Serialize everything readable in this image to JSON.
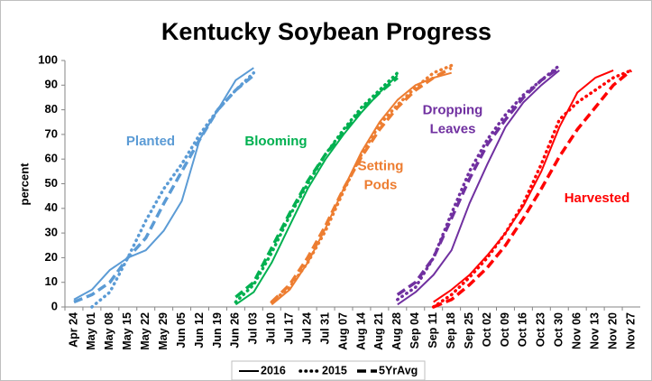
{
  "chart_data": {
    "type": "line",
    "title": "Kentucky Soybean Progress",
    "y_label": "percent",
    "categories": [
      "Apr 24",
      "May 01",
      "May 08",
      "May 15",
      "May 22",
      "May 29",
      "Jun 05",
      "Jun 12",
      "Jun 19",
      "Jun 26",
      "Jul 03",
      "Jul 10",
      "Jul 17",
      "Jul 24",
      "Jul 31",
      "Aug 07",
      "Aug 14",
      "Aug 21",
      "Aug 28",
      "Sep 04",
      "Sep 11",
      "Sep 18",
      "Sep 25",
      "Oct 02",
      "Oct 09",
      "Oct 16",
      "Oct 23",
      "Oct 30",
      "Nov 06",
      "Nov 13",
      "Nov 20",
      "Nov 27"
    ],
    "ylim": [
      0,
      100
    ],
    "yticks": [
      0,
      10,
      20,
      30,
      40,
      50,
      60,
      70,
      80,
      90,
      100
    ],
    "grid": false,
    "legend": {
      "position": "bottom",
      "color": "#000000",
      "entries": [
        {
          "name": "2016",
          "style": "solid"
        },
        {
          "name": "2015",
          "style": "dotted"
        },
        {
          "name": "5YrAvg",
          "style": "dashed"
        }
      ]
    },
    "stages": [
      {
        "label": [
          "Planted"
        ],
        "color": "#5b9bd5",
        "lines": [
          [
            3,
            7,
            15,
            20,
            23,
            31,
            43,
            68,
            80,
            92,
            97,
            null,
            null,
            null,
            null,
            null,
            null,
            null,
            null,
            null,
            null,
            null,
            null,
            null,
            null,
            null,
            null,
            null,
            null,
            null,
            null,
            null
          ],
          [
            null,
            0,
            6,
            20,
            35,
            48,
            58,
            70,
            80,
            88,
            95,
            null,
            null,
            null,
            null,
            null,
            null,
            null,
            null,
            null,
            null,
            null,
            null,
            null,
            null,
            null,
            null,
            null,
            null,
            null,
            null,
            null
          ],
          [
            2,
            5,
            10,
            20,
            28,
            42,
            55,
            68,
            80,
            88,
            94,
            null,
            null,
            null,
            null,
            null,
            null,
            null,
            null,
            null,
            null,
            null,
            null,
            null,
            null,
            null,
            null,
            null,
            null,
            null,
            null,
            null
          ]
        ]
      },
      {
        "label": [
          "Blooming"
        ],
        "color": "#00b050",
        "lines": [
          [
            null,
            null,
            null,
            null,
            null,
            null,
            null,
            null,
            null,
            1,
            6,
            18,
            33,
            48,
            60,
            70,
            79,
            87,
            94,
            null,
            null,
            null,
            null,
            null,
            null,
            null,
            null,
            null,
            null,
            null,
            null,
            null
          ],
          [
            null,
            null,
            null,
            null,
            null,
            null,
            null,
            null,
            null,
            2,
            9,
            22,
            37,
            50,
            62,
            72,
            81,
            88,
            95,
            null,
            null,
            null,
            null,
            null,
            null,
            null,
            null,
            null,
            null,
            null,
            null,
            null
          ],
          [
            null,
            null,
            null,
            null,
            null,
            null,
            null,
            null,
            null,
            4,
            10,
            24,
            38,
            51,
            62,
            71,
            80,
            87,
            93,
            null,
            null,
            null,
            null,
            null,
            null,
            null,
            null,
            null,
            null,
            null,
            null,
            null
          ]
        ]
      },
      {
        "label": [
          "Setting",
          "Pods"
        ],
        "color": "#ed7d31",
        "lines": [
          [
            null,
            null,
            null,
            null,
            null,
            null,
            null,
            null,
            null,
            null,
            null,
            1,
            7,
            18,
            32,
            48,
            63,
            75,
            84,
            90,
            93,
            95,
            null,
            null,
            null,
            null,
            null,
            null,
            null,
            null,
            null,
            null
          ],
          [
            null,
            null,
            null,
            null,
            null,
            null,
            null,
            null,
            null,
            null,
            null,
            2,
            8,
            18,
            31,
            47,
            62,
            74,
            82,
            89,
            95,
            98,
            null,
            null,
            null,
            null,
            null,
            null,
            null,
            null,
            null,
            null
          ],
          [
            null,
            null,
            null,
            null,
            null,
            null,
            null,
            null,
            null,
            null,
            null,
            2,
            9,
            20,
            33,
            48,
            61,
            72,
            81,
            88,
            93,
            97,
            null,
            null,
            null,
            null,
            null,
            null,
            null,
            null,
            null,
            null
          ]
        ]
      },
      {
        "label": [
          "Dropping",
          "Leaves"
        ],
        "color": "#7030a0",
        "lines": [
          [
            null,
            null,
            null,
            null,
            null,
            null,
            null,
            null,
            null,
            null,
            null,
            null,
            null,
            null,
            null,
            null,
            null,
            null,
            1,
            6,
            13,
            23,
            42,
            58,
            73,
            83,
            90,
            96,
            null,
            null,
            null,
            null
          ],
          [
            null,
            null,
            null,
            null,
            null,
            null,
            null,
            null,
            null,
            null,
            null,
            null,
            null,
            null,
            null,
            null,
            null,
            null,
            3,
            8,
            20,
            38,
            55,
            68,
            78,
            86,
            92,
            98,
            null,
            null,
            null,
            null
          ],
          [
            null,
            null,
            null,
            null,
            null,
            null,
            null,
            null,
            null,
            null,
            null,
            null,
            null,
            null,
            null,
            null,
            null,
            null,
            5,
            10,
            20,
            36,
            52,
            66,
            76,
            85,
            92,
            97,
            null,
            null,
            null,
            null
          ]
        ]
      },
      {
        "label": [
          "Harvested"
        ],
        "color": "#ff0000",
        "lines": [
          [
            null,
            null,
            null,
            null,
            null,
            null,
            null,
            null,
            null,
            null,
            null,
            null,
            null,
            null,
            null,
            null,
            null,
            null,
            null,
            null,
            2,
            7,
            13,
            21,
            30,
            41,
            55,
            73,
            87,
            93,
            96,
            null
          ],
          [
            null,
            null,
            null,
            null,
            null,
            null,
            null,
            null,
            null,
            null,
            null,
            null,
            null,
            null,
            null,
            null,
            null,
            null,
            null,
            null,
            0,
            5,
            12,
            20,
            30,
            42,
            58,
            76,
            83,
            88,
            93,
            96
          ],
          [
            null,
            null,
            null,
            null,
            null,
            null,
            null,
            null,
            null,
            null,
            null,
            null,
            null,
            null,
            null,
            null,
            null,
            null,
            null,
            null,
            0,
            3,
            9,
            16,
            25,
            36,
            48,
            61,
            72,
            81,
            90,
            96
          ]
        ]
      }
    ]
  }
}
